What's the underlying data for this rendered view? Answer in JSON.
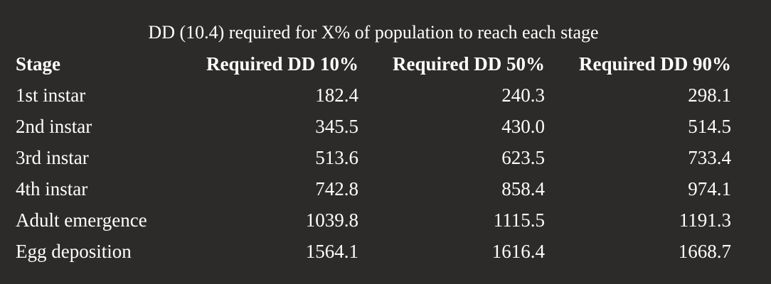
{
  "table": {
    "caption": "DD (10.4) required for X% of population to reach each stage",
    "columns": [
      "Stage",
      "Required DD 10%",
      "Required DD 50%",
      "Required DD 90%"
    ],
    "rows": [
      [
        "1st instar",
        "182.4",
        "240.3",
        "298.1"
      ],
      [
        "2nd instar",
        "345.5",
        "430.0",
        "514.5"
      ],
      [
        "3rd instar",
        "513.6",
        "623.5",
        "733.4"
      ],
      [
        "4th instar",
        "742.8",
        "858.4",
        "974.1"
      ],
      [
        "Adult emergence",
        "1039.8",
        "1115.5",
        "1191.3"
      ],
      [
        "Egg deposition",
        "1564.1",
        "1616.4",
        "1668.7"
      ]
    ]
  }
}
